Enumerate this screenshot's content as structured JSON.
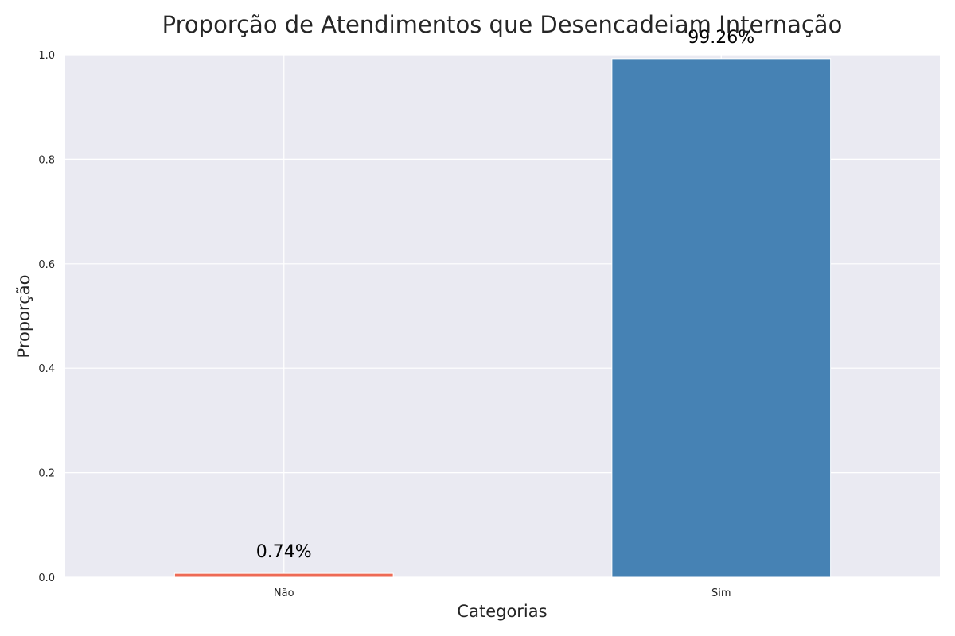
{
  "chart_data": {
    "type": "bar",
    "title": "Proporção de Atendimentos que Desencadeiam Internação",
    "xlabel": "Categorias",
    "ylabel": "Proporção",
    "categories": [
      "Não",
      "Sim"
    ],
    "values": [
      0.0074,
      0.9926
    ],
    "data_labels": [
      "0.74%",
      "99.26%"
    ],
    "colors": [
      "#ee6a55",
      "#4682b4"
    ],
    "ylim": [
      0,
      1.0
    ],
    "yticks": [
      0.0,
      0.2,
      0.4,
      0.6,
      0.8,
      1.0
    ],
    "ytick_labels": [
      "0.0",
      "0.2",
      "0.4",
      "0.6",
      "0.8",
      "1.0"
    ],
    "grid": true,
    "background_color": "#eaeaf2",
    "grid_color": "#ffffff"
  }
}
